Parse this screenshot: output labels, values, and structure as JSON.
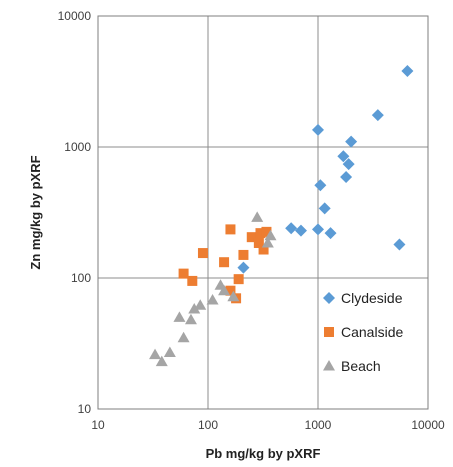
{
  "chart_data": {
    "type": "scatter",
    "title": "",
    "xlabel": "Pb mg/kg by pXRF",
    "ylabel": "Zn mg/kg by pXRF",
    "xscale": "log",
    "yscale": "log",
    "xlim": [
      10,
      10000
    ],
    "ylim": [
      10,
      10000
    ],
    "x_ticks": [
      10,
      100,
      1000,
      10000
    ],
    "y_ticks": [
      10,
      100,
      1000,
      10000
    ],
    "x_tick_labels": [
      "10",
      "100",
      "1000",
      "10000"
    ],
    "y_tick_labels": [
      "10",
      "100",
      "1000",
      "10000"
    ],
    "grid": true,
    "legend_position": "bottom-right",
    "series": [
      {
        "name": "Clydeside",
        "marker": "diamond",
        "color": "#5b9bd5",
        "points": [
          [
            6500,
            3800
          ],
          [
            3500,
            1750
          ],
          [
            1000,
            1350
          ],
          [
            2000,
            1100
          ],
          [
            1700,
            850
          ],
          [
            1900,
            740
          ],
          [
            1800,
            590
          ],
          [
            1050,
            510
          ],
          [
            1150,
            340
          ],
          [
            570,
            240
          ],
          [
            700,
            230
          ],
          [
            1000,
            235
          ],
          [
            1300,
            220
          ],
          [
            5500,
            180
          ],
          [
            210,
            120
          ]
        ]
      },
      {
        "name": "Canalside",
        "marker": "square",
        "color": "#ed7d31",
        "points": [
          [
            160,
            235
          ],
          [
            250,
            205
          ],
          [
            300,
            220
          ],
          [
            340,
            225
          ],
          [
            290,
            185
          ],
          [
            320,
            165
          ],
          [
            210,
            150
          ],
          [
            140,
            132
          ],
          [
            90,
            155
          ],
          [
            60,
            108
          ],
          [
            72,
            95
          ],
          [
            190,
            98
          ],
          [
            160,
            80
          ],
          [
            180,
            70
          ]
        ]
      },
      {
        "name": "Beach",
        "marker": "triangle",
        "color": "#a5a5a5",
        "points": [
          [
            280,
            290
          ],
          [
            370,
            210
          ],
          [
            350,
            185
          ],
          [
            170,
            72
          ],
          [
            140,
            80
          ],
          [
            130,
            88
          ],
          [
            110,
            68
          ],
          [
            85,
            62
          ],
          [
            75,
            58
          ],
          [
            70,
            48
          ],
          [
            55,
            50
          ],
          [
            60,
            35
          ],
          [
            45,
            27
          ],
          [
            33,
            26
          ],
          [
            38,
            23
          ]
        ]
      }
    ]
  }
}
